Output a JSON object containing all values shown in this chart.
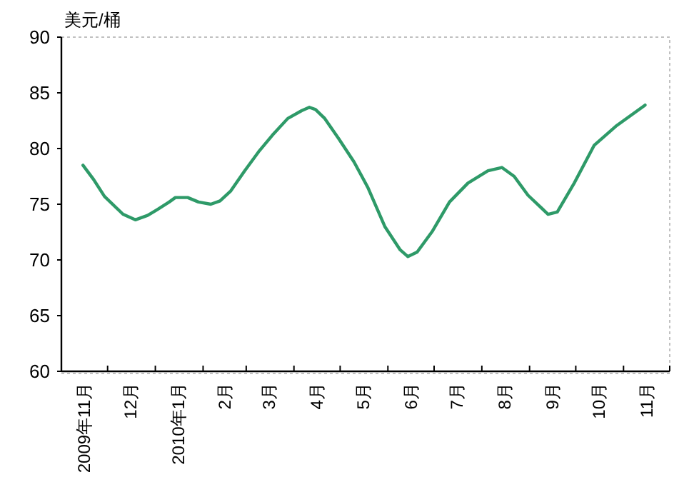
{
  "chart_data": {
    "type": "line",
    "ylabel": "美元/桶",
    "x": [
      "2009-11-15",
      "2009-11-22",
      "2009-11-29",
      "2009-12-11",
      "2009-12-19",
      "2009-12-27",
      "2010-01-02",
      "2010-01-10",
      "2010-01-14",
      "2010-01-22",
      "2010-01-29",
      "2010-02-06",
      "2010-02-12",
      "2010-02-19",
      "2010-02-28",
      "2010-03-09",
      "2010-03-18",
      "2010-03-28",
      "2010-04-06",
      "2010-04-11",
      "2010-04-15",
      "2010-04-21",
      "2010-04-30",
      "2010-05-10",
      "2010-05-19",
      "2010-05-30",
      "2010-06-09",
      "2010-06-14",
      "2010-06-20",
      "2010-06-30",
      "2010-07-11",
      "2010-07-23",
      "2010-08-05",
      "2010-08-14",
      "2010-08-22",
      "2010-08-31",
      "2010-09-13",
      "2010-09-19",
      "2010-09-30",
      "2010-10-13",
      "2010-10-27",
      "2010-11-15"
    ],
    "series": [
      {
        "color": "#2e9a68",
        "values": [
          78.5,
          77.2,
          75.7,
          74.1,
          73.6,
          74.0,
          74.5,
          75.2,
          75.6,
          75.6,
          75.2,
          75.0,
          75.3,
          76.2,
          78.0,
          79.7,
          81.2,
          82.7,
          83.4,
          83.7,
          83.5,
          82.7,
          80.9,
          78.8,
          76.5,
          73.0,
          70.9,
          70.3,
          70.7,
          72.6,
          75.2,
          76.9,
          78.0,
          78.3,
          77.5,
          75.8,
          74.1,
          74.3,
          76.9,
          80.3,
          82.0,
          83.9
        ]
      }
    ],
    "xlim": [
      "2009-11-01",
      "2010-12-01"
    ],
    "xticks": [
      {
        "value": "2009-11-01",
        "label": null
      },
      {
        "value": "2009-11-16",
        "label": "2009年11月"
      },
      {
        "value": "2009-12-01",
        "label": null
      },
      {
        "value": "2009-12-16",
        "label": "12月"
      },
      {
        "value": "2010-01-01",
        "label": null
      },
      {
        "value": "2010-01-16",
        "label": "2010年1月"
      },
      {
        "value": "2010-02-01",
        "label": null
      },
      {
        "value": "2010-02-15",
        "label": "2月"
      },
      {
        "value": "2010-03-01",
        "label": null
      },
      {
        "value": "2010-03-16",
        "label": "3月"
      },
      {
        "value": "2010-04-01",
        "label": null
      },
      {
        "value": "2010-04-16",
        "label": "4月"
      },
      {
        "value": "2010-05-01",
        "label": null
      },
      {
        "value": "2010-05-16",
        "label": "5月"
      },
      {
        "value": "2010-06-01",
        "label": null
      },
      {
        "value": "2010-06-16",
        "label": "6月"
      },
      {
        "value": "2010-07-01",
        "label": null
      },
      {
        "value": "2010-07-16",
        "label": "7月"
      },
      {
        "value": "2010-08-01",
        "label": null
      },
      {
        "value": "2010-08-16",
        "label": "8月"
      },
      {
        "value": "2010-09-01",
        "label": null
      },
      {
        "value": "2010-09-16",
        "label": "9月"
      },
      {
        "value": "2010-10-01",
        "label": null
      },
      {
        "value": "2010-10-16",
        "label": "10月"
      },
      {
        "value": "2010-11-01",
        "label": null
      },
      {
        "value": "2010-11-16",
        "label": "11月"
      },
      {
        "value": "2010-12-01",
        "label": null
      }
    ],
    "ylim": [
      60,
      90
    ],
    "yticks": [
      60,
      65,
      70,
      75,
      80,
      85,
      90
    ]
  }
}
